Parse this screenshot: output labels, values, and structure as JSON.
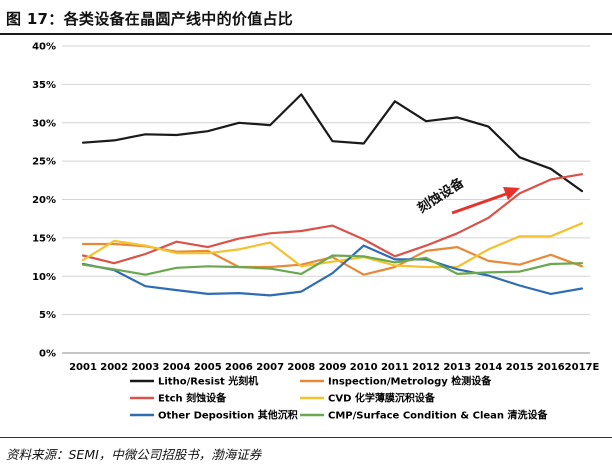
{
  "figure": {
    "title": "图 17：各类设备在晶圆产线中的价值占比",
    "source": "资料来源：SEMI，中微公司招股书，渤海证券"
  },
  "chart_data": {
    "type": "line",
    "title": "",
    "xlabel": "",
    "ylabel": "",
    "categories": [
      "2001",
      "2002",
      "2003",
      "2004",
      "2005",
      "2006",
      "2007",
      "2008",
      "2009",
      "2010",
      "2011",
      "2012",
      "2013",
      "2014",
      "2015",
      "2016",
      "2017E"
    ],
    "ylim": [
      0,
      40
    ],
    "yticks": [
      0,
      5,
      10,
      15,
      20,
      25,
      30,
      35,
      40
    ],
    "ytick_labels": [
      "0%",
      "5%",
      "10%",
      "15%",
      "20%",
      "25%",
      "30%",
      "35%",
      "40%"
    ],
    "grid": true,
    "legend_position": "bottom",
    "series": [
      {
        "name": "Litho/Resist 光刻机",
        "color": "#1a1a1a",
        "values": [
          27.4,
          27.7,
          28.5,
          28.4,
          28.9,
          30.0,
          29.7,
          33.7,
          27.6,
          27.3,
          32.8,
          30.2,
          30.7,
          29.5,
          25.5,
          24.0,
          21.1
        ]
      },
      {
        "name": "Inspection/Metrology 检测设备",
        "color": "#e8893a",
        "values": [
          14.2,
          14.2,
          13.9,
          13.2,
          13.3,
          11.2,
          11.2,
          11.5,
          12.5,
          10.2,
          11.2,
          13.3,
          13.8,
          12.0,
          11.5,
          12.8,
          11.3
        ]
      },
      {
        "name": "Etch 刻蚀设备",
        "color": "#d9534a",
        "values": [
          12.7,
          11.7,
          12.9,
          14.5,
          13.8,
          14.9,
          15.6,
          15.9,
          16.6,
          14.8,
          12.6,
          14.0,
          15.6,
          17.6,
          20.8,
          22.6,
          23.3
        ]
      },
      {
        "name": "CVD 化学薄膜沉积设备",
        "color": "#f2c230",
        "values": [
          12.1,
          14.6,
          14.0,
          13.0,
          13.0,
          13.5,
          14.4,
          11.3,
          11.9,
          12.5,
          11.4,
          11.2,
          11.2,
          13.5,
          15.2,
          15.2,
          16.9
        ]
      },
      {
        "name": "Other Deposition 其他沉积",
        "color": "#2f6db3",
        "values": [
          11.6,
          10.8,
          8.7,
          8.2,
          7.7,
          7.8,
          7.5,
          8.0,
          10.4,
          14.0,
          12.2,
          12.2,
          10.9,
          10.1,
          8.8,
          7.7,
          8.4
        ]
      },
      {
        "name": "CMP/Surface Condition & Clean 清洗设备",
        "color": "#6aa84f",
        "values": [
          11.5,
          10.9,
          10.2,
          11.1,
          11.3,
          11.2,
          11.0,
          10.3,
          12.7,
          12.6,
          11.8,
          12.4,
          10.3,
          10.5,
          10.6,
          11.6,
          11.7
        ]
      }
    ],
    "annotation": {
      "text": "刻蚀设备",
      "color": "#e8312a"
    }
  }
}
